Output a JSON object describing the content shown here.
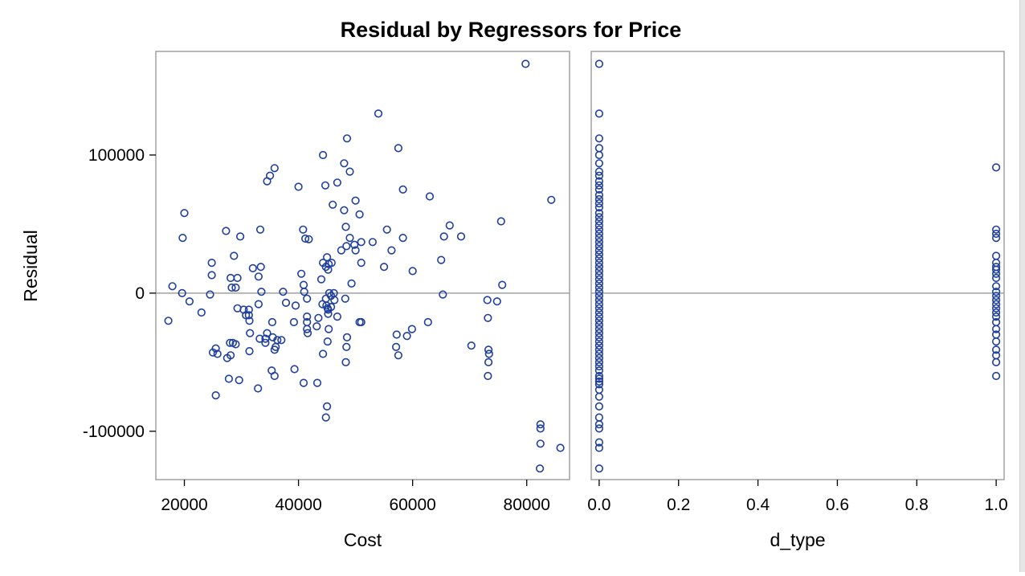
{
  "chart_data": {
    "type": "scatter",
    "title": "Residual by Regressors for Price",
    "ylabel": "Residual",
    "ylim": [
      -135000,
      175000
    ],
    "yticks": [
      -100000,
      0,
      100000
    ],
    "reference_line_y": 0,
    "marker": "open-circle",
    "marker_color": "#1f3f9e",
    "reference_line_color": "#a0a0a0",
    "frame_color": "#a0a0a0",
    "panels": [
      {
        "xlabel": "Cost",
        "xlim": [
          15000,
          87500
        ],
        "xticks": [
          20000,
          40000,
          60000,
          80000
        ],
        "points": [
          [
            79800,
            166000
          ],
          [
            54000,
            130000
          ],
          [
            48500,
            112000
          ],
          [
            57500,
            105000
          ],
          [
            44300,
            100000
          ],
          [
            48000,
            94000
          ],
          [
            35800,
            90500
          ],
          [
            49000,
            88000
          ],
          [
            35000,
            85000
          ],
          [
            34500,
            81000
          ],
          [
            44700,
            78000
          ],
          [
            46800,
            80000
          ],
          [
            40000,
            77000
          ],
          [
            58300,
            75000
          ],
          [
            50000,
            67000
          ],
          [
            63000,
            70000
          ],
          [
            84300,
            67500
          ],
          [
            46000,
            64000
          ],
          [
            20000,
            58000
          ],
          [
            48000,
            60000
          ],
          [
            50700,
            57000
          ],
          [
            75500,
            52000
          ],
          [
            66500,
            49000
          ],
          [
            27300,
            45000
          ],
          [
            33300,
            46000
          ],
          [
            40800,
            46000
          ],
          [
            55500,
            46000
          ],
          [
            19700,
            40000
          ],
          [
            29800,
            41000
          ],
          [
            41200,
            39500
          ],
          [
            41800,
            39000
          ],
          [
            58300,
            40000
          ],
          [
            65500,
            41000
          ],
          [
            68500,
            41000
          ],
          [
            48300,
            48000
          ],
          [
            49000,
            40000
          ],
          [
            53000,
            37000
          ],
          [
            48400,
            34000
          ],
          [
            49800,
            35000
          ],
          [
            51000,
            37000
          ],
          [
            47500,
            31000
          ],
          [
            50000,
            31000
          ],
          [
            56300,
            31000
          ],
          [
            28700,
            27000
          ],
          [
            45000,
            26000
          ],
          [
            44300,
            22000
          ],
          [
            45300,
            21000
          ],
          [
            45800,
            22000
          ],
          [
            24800,
            22000
          ],
          [
            33400,
            19000
          ],
          [
            32000,
            18000
          ],
          [
            51000,
            22000
          ],
          [
            55000,
            19000
          ],
          [
            65000,
            24000
          ],
          [
            44800,
            19000
          ],
          [
            45200,
            17000
          ],
          [
            60000,
            16000
          ],
          [
            24800,
            13000
          ],
          [
            40500,
            14000
          ],
          [
            28100,
            11000
          ],
          [
            29300,
            11000
          ],
          [
            33000,
            12000
          ],
          [
            44000,
            10000
          ],
          [
            49300,
            7000
          ],
          [
            75700,
            6000
          ],
          [
            17900,
            5000
          ],
          [
            28300,
            4000
          ],
          [
            29000,
            4000
          ],
          [
            40900,
            6000
          ],
          [
            46200,
            0
          ],
          [
            33500,
            1000
          ],
          [
            37300,
            1000
          ],
          [
            19600,
            0
          ],
          [
            24500,
            -1000
          ],
          [
            41000,
            1000
          ],
          [
            65300,
            -1000
          ],
          [
            45400,
            0
          ],
          [
            45700,
            -2000
          ],
          [
            44800,
            -4000
          ],
          [
            46300,
            -5000
          ],
          [
            41500,
            -4000
          ],
          [
            20900,
            -6000
          ],
          [
            33000,
            -8000
          ],
          [
            37800,
            -7000
          ],
          [
            39500,
            -9000
          ],
          [
            44200,
            -8000
          ],
          [
            48200,
            -4000
          ],
          [
            73100,
            -5000
          ],
          [
            74800,
            -6000
          ],
          [
            44900,
            -9000
          ],
          [
            45100,
            -11000
          ],
          [
            45700,
            -10000
          ],
          [
            29300,
            -11000
          ],
          [
            30400,
            -12000
          ],
          [
            31300,
            -12000
          ],
          [
            45200,
            -12000
          ],
          [
            23000,
            -14000
          ],
          [
            30800,
            -16000
          ],
          [
            31300,
            -16000
          ],
          [
            41500,
            -17000
          ],
          [
            43500,
            -18000
          ],
          [
            46800,
            -17000
          ],
          [
            45200,
            -15000
          ],
          [
            73200,
            -18000
          ],
          [
            17200,
            -20000
          ],
          [
            31400,
            -20000
          ],
          [
            35400,
            -21000
          ],
          [
            39200,
            -21000
          ],
          [
            41500,
            -21000
          ],
          [
            50700,
            -21000
          ],
          [
            51000,
            -21000
          ],
          [
            62700,
            -21000
          ],
          [
            43200,
            -24000
          ],
          [
            41500,
            -26000
          ],
          [
            45300,
            -26000
          ],
          [
            59900,
            -26000
          ],
          [
            41600,
            -29000
          ],
          [
            31500,
            -29000
          ],
          [
            34500,
            -29000
          ],
          [
            57200,
            -30000
          ],
          [
            59000,
            -31000
          ],
          [
            35500,
            -32000
          ],
          [
            48500,
            -32000
          ],
          [
            33200,
            -33000
          ],
          [
            34200,
            -33000
          ],
          [
            36300,
            -34000
          ],
          [
            37000,
            -34000
          ],
          [
            28000,
            -36000
          ],
          [
            28500,
            -36000
          ],
          [
            29000,
            -37000
          ],
          [
            34200,
            -36000
          ],
          [
            45100,
            -35000
          ],
          [
            36000,
            -39000
          ],
          [
            57100,
            -39000
          ],
          [
            48400,
            -39000
          ],
          [
            70300,
            -38000
          ],
          [
            25500,
            -40000
          ],
          [
            35800,
            -41000
          ],
          [
            73300,
            -41000
          ],
          [
            73400,
            -44000
          ],
          [
            25000,
            -43000
          ],
          [
            25800,
            -44000
          ],
          [
            31400,
            -42000
          ],
          [
            57500,
            -45000
          ],
          [
            28100,
            -45000
          ],
          [
            27500,
            -47000
          ],
          [
            44300,
            -44000
          ],
          [
            48300,
            -50000
          ],
          [
            73300,
            -50000
          ],
          [
            35300,
            -56000
          ],
          [
            39300,
            -55000
          ],
          [
            35800,
            -60000
          ],
          [
            73200,
            -60000
          ],
          [
            27800,
            -62000
          ],
          [
            29600,
            -63000
          ],
          [
            40900,
            -65000
          ],
          [
            43300,
            -65000
          ],
          [
            32900,
            -69000
          ],
          [
            25500,
            -74000
          ],
          [
            45000,
            -82000
          ],
          [
            44800,
            -90000
          ],
          [
            82400,
            -95000
          ],
          [
            82400,
            -98000
          ],
          [
            82400,
            -109000
          ],
          [
            85900,
            -112000
          ],
          [
            82300,
            -127000
          ]
        ]
      },
      {
        "xlabel": "d_type",
        "xlim": [
          -0.02,
          1.02
        ],
        "xticks": [
          0.0,
          0.2,
          0.4,
          0.6,
          0.8,
          1.0
        ],
        "points": [
          [
            0,
            166000
          ],
          [
            0,
            130000
          ],
          [
            0,
            112000
          ],
          [
            0,
            105000
          ],
          [
            0,
            100000
          ],
          [
            0,
            94000
          ],
          [
            0,
            88000
          ],
          [
            0,
            85000
          ],
          [
            0,
            81000
          ],
          [
            0,
            78000
          ],
          [
            0,
            75000
          ],
          [
            0,
            71000
          ],
          [
            0,
            68000
          ],
          [
            0,
            65000
          ],
          [
            0,
            62000
          ],
          [
            0,
            58000
          ],
          [
            0,
            55000
          ],
          [
            0,
            52000
          ],
          [
            0,
            49000
          ],
          [
            0,
            46000
          ],
          [
            0,
            43000
          ],
          [
            0,
            40000
          ],
          [
            0,
            37000
          ],
          [
            0,
            34000
          ],
          [
            0,
            31000
          ],
          [
            0,
            28000
          ],
          [
            0,
            25000
          ],
          [
            0,
            22000
          ],
          [
            0,
            19000
          ],
          [
            0,
            16000
          ],
          [
            0,
            13000
          ],
          [
            0,
            10000
          ],
          [
            0,
            7000
          ],
          [
            0,
            4000
          ],
          [
            0,
            1000
          ],
          [
            0,
            -2000
          ],
          [
            0,
            -5000
          ],
          [
            0,
            -8000
          ],
          [
            0,
            -11000
          ],
          [
            0,
            -14000
          ],
          [
            0,
            -17000
          ],
          [
            0,
            -20000
          ],
          [
            0,
            -23000
          ],
          [
            0,
            -26000
          ],
          [
            0,
            -29000
          ],
          [
            0,
            -32000
          ],
          [
            0,
            -35000
          ],
          [
            0,
            -38000
          ],
          [
            0,
            -41000
          ],
          [
            0,
            -44000
          ],
          [
            0,
            -47000
          ],
          [
            0,
            -50000
          ],
          [
            0,
            -53000
          ],
          [
            0,
            -56000
          ],
          [
            0,
            -60000
          ],
          [
            0,
            -62000
          ],
          [
            0,
            -64000
          ],
          [
            0,
            -66000
          ],
          [
            0,
            -70000
          ],
          [
            0,
            -75000
          ],
          [
            0,
            -82000
          ],
          [
            0,
            -90000
          ],
          [
            0,
            -95000
          ],
          [
            0,
            -98000
          ],
          [
            0,
            -108000
          ],
          [
            0,
            -112000
          ],
          [
            0,
            -127000
          ],
          [
            1,
            91000
          ],
          [
            1,
            46000
          ],
          [
            1,
            43000
          ],
          [
            1,
            40000
          ],
          [
            1,
            27000
          ],
          [
            1,
            22000
          ],
          [
            1,
            19000
          ],
          [
            1,
            17000
          ],
          [
            1,
            14000
          ],
          [
            1,
            11000
          ],
          [
            1,
            5000
          ],
          [
            1,
            1000
          ],
          [
            1,
            -2000
          ],
          [
            1,
            -5000
          ],
          [
            1,
            -8000
          ],
          [
            1,
            -11000
          ],
          [
            1,
            -14000
          ],
          [
            1,
            -17000
          ],
          [
            1,
            -21000
          ],
          [
            1,
            -26000
          ],
          [
            1,
            -30000
          ],
          [
            1,
            -35000
          ],
          [
            1,
            -41000
          ],
          [
            1,
            -45000
          ],
          [
            1,
            -50000
          ],
          [
            1,
            -60000
          ]
        ]
      }
    ]
  }
}
